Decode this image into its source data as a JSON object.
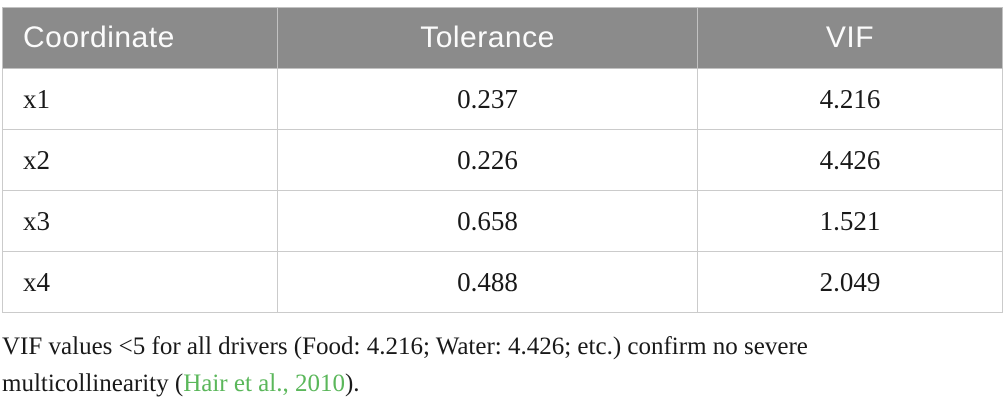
{
  "table": {
    "columns": [
      "Coordinate",
      "Tolerance",
      "VIF"
    ],
    "rows": [
      {
        "coordinate": "x1",
        "tolerance": "0.237",
        "vif": "4.216"
      },
      {
        "coordinate": "x2",
        "tolerance": "0.226",
        "vif": "4.426"
      },
      {
        "coordinate": "x3",
        "tolerance": "0.658",
        "vif": "1.521"
      },
      {
        "coordinate": "x4",
        "tolerance": "0.488",
        "vif": "2.049"
      }
    ]
  },
  "footnote": {
    "line1": "VIF values <5 for all drivers (Food: 4.216; Water: 4.426; etc.) confirm no severe",
    "line2_prefix": "multicollinearity (",
    "link": "Hair et al., 2010",
    "line2_suffix": ")."
  },
  "colors": {
    "header_bg": "#8b8b8b",
    "header_text": "#fbfbfb",
    "border": "#cbcbcb",
    "body_text": "#191919",
    "link_green": "#5bb75b"
  }
}
